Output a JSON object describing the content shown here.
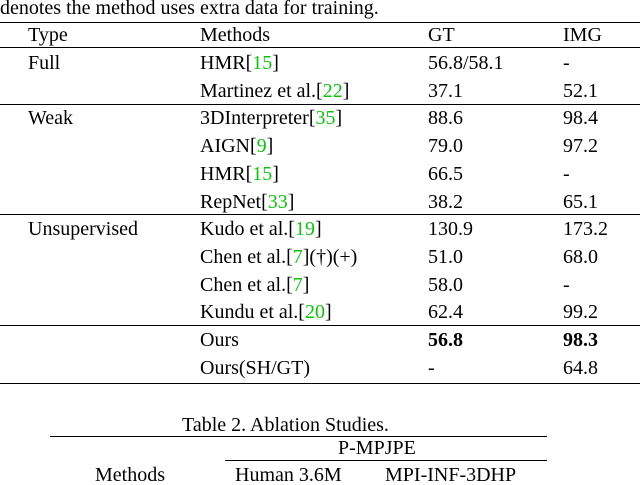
{
  "caption_tail": "denotes the method uses extra data for training.",
  "table": {
    "headers": [
      "Type",
      "Methods",
      "GT",
      "IMG"
    ],
    "groups": [
      {
        "type": "Full",
        "rows": [
          {
            "method": [
              "HMR[",
              "15",
              "]"
            ],
            "gt": "56.8/58.1",
            "img": "-"
          },
          {
            "method": [
              "Martinez et al.[",
              "22",
              "]"
            ],
            "gt": "37.1",
            "img": "52.1"
          }
        ]
      },
      {
        "type": "Weak",
        "rows": [
          {
            "method": [
              "3DInterpreter[",
              "35",
              "]"
            ],
            "gt": "88.6",
            "img": "98.4"
          },
          {
            "method": [
              "AIGN[",
              "9",
              "]"
            ],
            "gt": "79.0",
            "img": "97.2"
          },
          {
            "method": [
              "HMR[",
              "15",
              "]"
            ],
            "gt": "66.5",
            "img": "-"
          },
          {
            "method": [
              "RepNet[",
              "33",
              "]"
            ],
            "gt": "38.2",
            "img": "65.1"
          }
        ]
      },
      {
        "type": "Unsupervised",
        "rows": [
          {
            "method": [
              "Kudo et al.[",
              "19",
              "]"
            ],
            "gt": "130.9",
            "img": "173.2"
          },
          {
            "method": [
              "Chen et al.[",
              "7",
              "](†)(+)"
            ],
            "gt": "51.0",
            "img": "68.0"
          },
          {
            "method": [
              "Chen et al.[",
              "7",
              "]"
            ],
            "gt": "58.0",
            "img": "-"
          },
          {
            "method": [
              "Kundu et al.[",
              "20",
              "]"
            ],
            "gt": "62.4",
            "img": "99.2"
          }
        ]
      },
      {
        "rows": [
          {
            "method": [
              "Ours"
            ],
            "gt": "56.8",
            "img": "98.3",
            "bold": true
          },
          {
            "method": [
              "Ours(SH/GT)"
            ],
            "gt": "-",
            "img": "64.8"
          }
        ]
      }
    ]
  },
  "table2": {
    "caption": "Table 2. Ablation Studies.",
    "group_header": "P-MPJPE",
    "headers": [
      "Methods",
      "Human 3.6M",
      "MPI-INF-3DHP"
    ]
  }
}
